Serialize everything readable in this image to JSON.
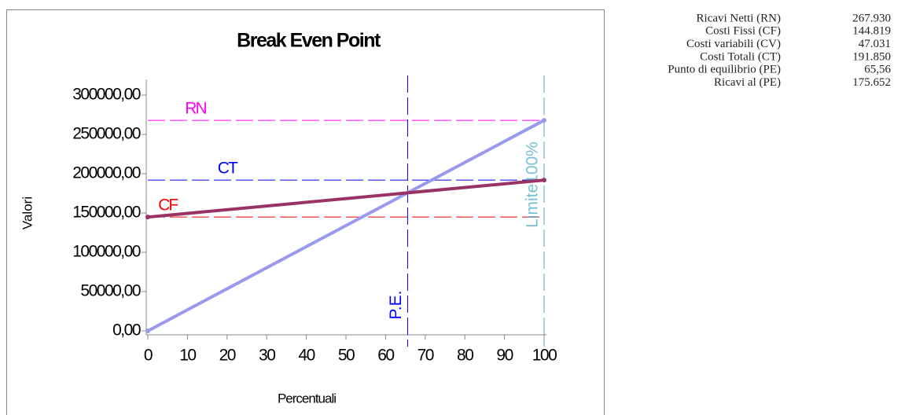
{
  "chart_data": {
    "type": "line",
    "title": "Break Even Point",
    "xlabel": "Percentuali",
    "ylabel": "Valori",
    "xlim": [
      0,
      100
    ],
    "xticks": [
      0,
      10,
      20,
      30,
      40,
      50,
      60,
      70,
      80,
      90,
      100
    ],
    "ylim": [
      0,
      300000
    ],
    "yticks": [
      {
        "value": 0,
        "label": "0,00"
      },
      {
        "value": 50000,
        "label": "50000,00"
      },
      {
        "value": 100000,
        "label": "100000,00"
      },
      {
        "value": 150000,
        "label": "150000,00"
      },
      {
        "value": 200000,
        "label": "200000,00"
      },
      {
        "value": 250000,
        "label": "250000,00"
      },
      {
        "value": 300000,
        "label": "300000,00"
      }
    ],
    "series": [
      {
        "color": "#9999ee",
        "x": [
          0,
          100
        ],
        "values": [
          0,
          267930
        ]
      },
      {
        "color": "#993366",
        "x": [
          0,
          100
        ],
        "values": [
          144819,
          191850
        ]
      }
    ],
    "hlines": [
      {
        "label": "RN",
        "value": 267930,
        "color": "#ff00ff"
      },
      {
        "label": "CT",
        "value": 191850,
        "color": "#0000ff"
      },
      {
        "label": "CF",
        "value": 144819,
        "color": "#ff0000"
      }
    ],
    "vlines": [
      {
        "label": "P.E.",
        "value": 65.56,
        "color": "#0000ff"
      },
      {
        "label": "Limite100%",
        "value": 100,
        "color": "#4bacc6"
      }
    ]
  },
  "table": {
    "rows": [
      [
        "Ricavi Netti (RN)",
        "267.930"
      ],
      [
        "Costi Fissi (CF)",
        "144.819"
      ],
      [
        "Costi variabili (CV)",
        "47.031"
      ],
      [
        "Costi Totali (CT)",
        "191.850"
      ],
      [
        "Punto di equilibrio (PE)",
        "65,56"
      ],
      [
        "Ricavi al (PE)",
        "175.652"
      ]
    ]
  }
}
